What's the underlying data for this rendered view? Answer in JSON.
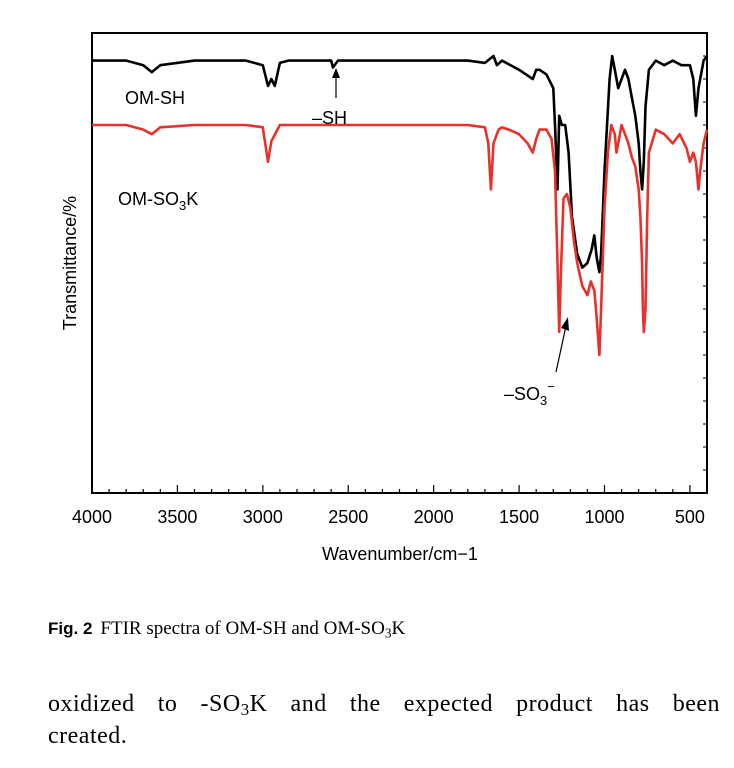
{
  "chart_data": {
    "type": "line",
    "title": "",
    "xlabel": "Wavenumber/cm−1",
    "ylabel": "Transmittance/%",
    "xlim": [
      4000,
      400
    ],
    "x_reversed": true,
    "ylim": [
      0,
      100
    ],
    "y_tick_labels": false,
    "x_ticks": [
      4000,
      3500,
      3000,
      2500,
      2000,
      1500,
      1000,
      500
    ],
    "x_tick_labels": [
      "4000",
      "3500",
      "3000",
      "2500",
      "2000",
      "1500",
      "1000",
      "500"
    ],
    "series": [
      {
        "name": "OM-SH",
        "color": "#000000",
        "x": [
          4000,
          3800,
          3700,
          3650,
          3600,
          3400,
          3200,
          3100,
          3000,
          2970,
          2950,
          2930,
          2900,
          2850,
          2700,
          2600,
          2590,
          2560,
          2500,
          2200,
          1800,
          1700,
          1650,
          1630,
          1600,
          1500,
          1420,
          1400,
          1380,
          1340,
          1300,
          1290,
          1275,
          1265,
          1250,
          1230,
          1210,
          1190,
          1160,
          1130,
          1100,
          1075,
          1060,
          1045,
          1030,
          1020,
          1000,
          970,
          955,
          940,
          920,
          900,
          880,
          860,
          840,
          820,
          800,
          790,
          780,
          770,
          760,
          740,
          700,
          650,
          600,
          550,
          500,
          480,
          465,
          450,
          440,
          420,
          400
        ],
        "y": [
          94,
          94,
          93,
          91.5,
          93,
          94,
          94,
          94,
          93,
          88.5,
          90,
          88.5,
          93.5,
          94,
          94,
          94,
          92.5,
          94,
          94,
          94,
          94,
          93.5,
          95,
          93,
          94,
          92,
          90,
          92,
          92,
          91,
          88,
          80,
          66,
          82,
          80,
          80,
          74,
          60,
          52,
          49,
          50,
          53,
          56,
          51,
          48,
          52,
          70,
          90,
          95,
          92,
          88,
          90,
          92,
          90,
          86,
          82,
          76,
          70,
          66,
          72,
          84,
          92,
          94,
          93,
          94,
          93,
          93,
          90,
          82,
          88,
          90,
          94,
          95
        ]
      },
      {
        "name": "OM-SO3K",
        "color": "#e8312a",
        "x": [
          4000,
          3800,
          3700,
          3650,
          3600,
          3400,
          3200,
          3100,
          3000,
          2970,
          2950,
          2900,
          2800,
          2500,
          2200,
          1800,
          1700,
          1680,
          1665,
          1650,
          1620,
          1600,
          1560,
          1500,
          1450,
          1420,
          1400,
          1380,
          1340,
          1310,
          1290,
          1275,
          1265,
          1255,
          1240,
          1220,
          1200,
          1180,
          1160,
          1130,
          1100,
          1080,
          1060,
          1050,
          1040,
          1030,
          1020,
          1000,
          980,
          960,
          940,
          930,
          920,
          900,
          880,
          860,
          840,
          820,
          800,
          790,
          780,
          775,
          770,
          760,
          750,
          740,
          700,
          650,
          600,
          560,
          520,
          500,
          480,
          465,
          450,
          440,
          420,
          400
        ],
        "y": [
          80,
          80,
          79,
          78,
          79.5,
          80,
          80,
          80,
          79.5,
          72,
          76.5,
          80,
          80,
          80,
          80,
          80,
          79.5,
          76,
          66,
          76,
          79,
          79.5,
          79,
          78,
          76,
          74,
          77,
          79,
          79,
          77,
          70,
          50,
          35,
          48,
          64,
          65,
          62,
          55,
          50,
          45,
          43,
          46,
          44,
          40,
          35,
          30,
          40,
          62,
          74,
          80,
          78,
          74,
          76,
          80,
          78,
          76,
          73,
          71,
          66,
          60,
          50,
          40,
          35,
          40,
          60,
          74,
          79,
          78,
          76,
          78,
          75,
          72,
          74,
          72,
          66,
          70,
          76,
          79
        ]
      }
    ],
    "annotations": [
      {
        "text": "OM-SH",
        "series": 0
      },
      {
        "text": "–SH",
        "series": 0,
        "x": 2580
      },
      {
        "text": "OM-SO3K",
        "series": 1
      },
      {
        "text": "–SO3−",
        "series": 1,
        "x": 1270
      }
    ]
  },
  "labels": {
    "series1_label": "OM-SH",
    "series2_label_main": "OM-SO",
    "series2_label_sub": "3",
    "series2_label_tail": "K",
    "sh_label": "–SH",
    "so3_label_main": "–SO",
    "so3_label_sub": "3",
    "so3_label_sup": "−"
  },
  "caption": {
    "fig_label": "Fig. 2",
    "text_before": "FTIR spectra of OM-SH and OM-SO",
    "text_sub": "3",
    "text_after": "K"
  },
  "body": {
    "line1_before": "oxidized to -SO",
    "line1_sub": "3",
    "line1_after": "K and the expected product has been",
    "line2": "created."
  }
}
